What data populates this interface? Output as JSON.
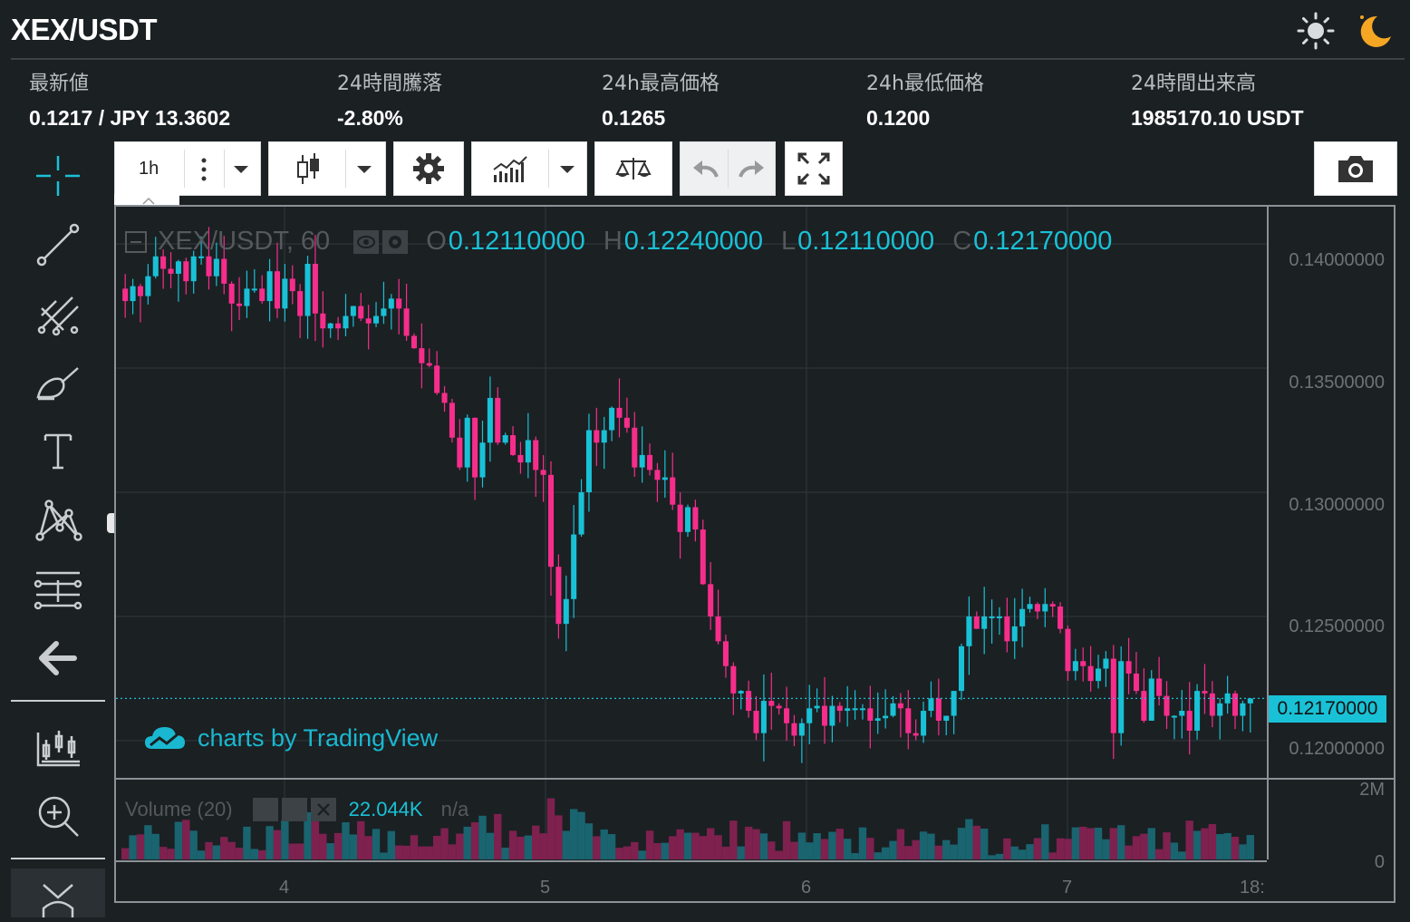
{
  "header": {
    "pair": "XEX/USDT",
    "theme_light_icon": "sun-icon",
    "theme_dark_icon": "moon-icon"
  },
  "stats": [
    {
      "label": "最新値",
      "value": "0.1217 / JPY 13.3602"
    },
    {
      "label": "24時間騰落",
      "value": "-2.80%"
    },
    {
      "label": "24h最高価格",
      "value": "0.1265"
    },
    {
      "label": "24h最低価格",
      "value": "0.1200"
    },
    {
      "label": "24時間出来高",
      "value": "1985170.10 USDT"
    }
  ],
  "toolbar": {
    "interval": "1h",
    "icons": [
      "more-vertical-icon",
      "candles-icon",
      "settings-icon",
      "indicators-icon",
      "compare-icon",
      "undo-icon",
      "redo-icon",
      "fullscreen-icon",
      "camera-icon"
    ]
  },
  "left_tools": [
    "crosshair-icon",
    "trend-line-icon",
    "pitchfork-icon",
    "brush-icon",
    "text-icon",
    "pattern-icon",
    "fib-icon",
    "back-arrow-icon",
    "long-position-icon",
    "zoom-in-icon",
    "chevron-down-icon"
  ],
  "legend": {
    "symbol": "XEX/USDT, 60",
    "o_label": "O",
    "o_value": "0.12110000",
    "h_label": "H",
    "h_value": "0.12240000",
    "l_label": "L",
    "l_value": "0.12110000",
    "c_label": "C",
    "c_value": "0.12170000"
  },
  "volume_legend": {
    "label": "Volume (20)",
    "value": "22.044K",
    "na": "n/a"
  },
  "watermark": "charts by TradingView",
  "last_price_label": "0.12170000",
  "colors": {
    "up": "#19c1d6",
    "down": "#f72d8c",
    "bg": "#1b2023",
    "grid": "#2b3134"
  },
  "chart_data": {
    "type": "candlestick",
    "y_ticks": [
      "0.14000000",
      "0.13500000",
      "0.13000000",
      "0.12500000",
      "0.12000000"
    ],
    "ylim": [
      0.1185,
      0.1415
    ],
    "x_ticks": [
      "4",
      "5",
      "6",
      "7",
      "18:"
    ],
    "volume_ticks": [
      "2M",
      "0"
    ],
    "last_price": 0.1217,
    "candles_close": [
      0.1377,
      0.1383,
      0.1379,
      0.1387,
      0.1395,
      0.139,
      0.1388,
      0.1393,
      0.1385,
      0.1395,
      0.1395,
      0.1387,
      0.1394,
      0.1384,
      0.1376,
      0.1375,
      0.1382,
      0.1382,
      0.1377,
      0.1389,
      0.1374,
      0.1386,
      0.1381,
      0.1371,
      0.1392,
      0.1372,
      0.1366,
      0.1368,
      0.1366,
      0.1371,
      0.1375,
      0.137,
      0.1368,
      0.1371,
      0.1374,
      0.1378,
      0.1374,
      0.1363,
      0.1358,
      0.1352,
      0.1351,
      0.134,
      0.1336,
      0.1322,
      0.131,
      0.133,
      0.1306,
      0.132,
      0.1338,
      0.132,
      0.1323,
      0.1315,
      0.1312,
      0.1321,
      0.1309,
      0.1307,
      0.127,
      0.1247,
      0.1257,
      0.1283,
      0.13,
      0.1325,
      0.132,
      0.1325,
      0.1334,
      0.133,
      0.1326,
      0.131,
      0.1315,
      0.1309,
      0.1305,
      0.1306,
      0.1295,
      0.1284,
      0.1294,
      0.1285,
      0.1263,
      0.125,
      0.124,
      0.123,
      0.1219,
      0.122,
      0.1212,
      0.1203,
      0.1216,
      0.1214,
      0.1213,
      0.1207,
      0.1202,
      0.1207,
      0.1213,
      0.1214,
      0.1206,
      0.1214,
      0.1212,
      0.1213,
      0.1213,
      0.1213,
      0.1208,
      0.1209,
      0.121,
      0.1215,
      0.1213,
      0.1203,
      0.1202,
      0.1212,
      0.1217,
      0.1208,
      0.121,
      0.122,
      0.1238,
      0.125,
      0.1245,
      0.125,
      0.125,
      0.125,
      0.124,
      0.1246,
      0.1253,
      0.1255,
      0.1252,
      0.1255,
      0.1254,
      0.1245,
      0.1228,
      0.1232,
      0.123,
      0.1224,
      0.1229,
      0.1233,
      0.1203,
      0.1232,
      0.1227,
      0.122,
      0.1208,
      0.1225,
      0.1218,
      0.121,
      0.121,
      0.1212,
      0.1204,
      0.122,
      0.1219,
      0.121,
      0.1215,
      0.1219,
      0.121,
      0.1215,
      0.1217
    ]
  }
}
